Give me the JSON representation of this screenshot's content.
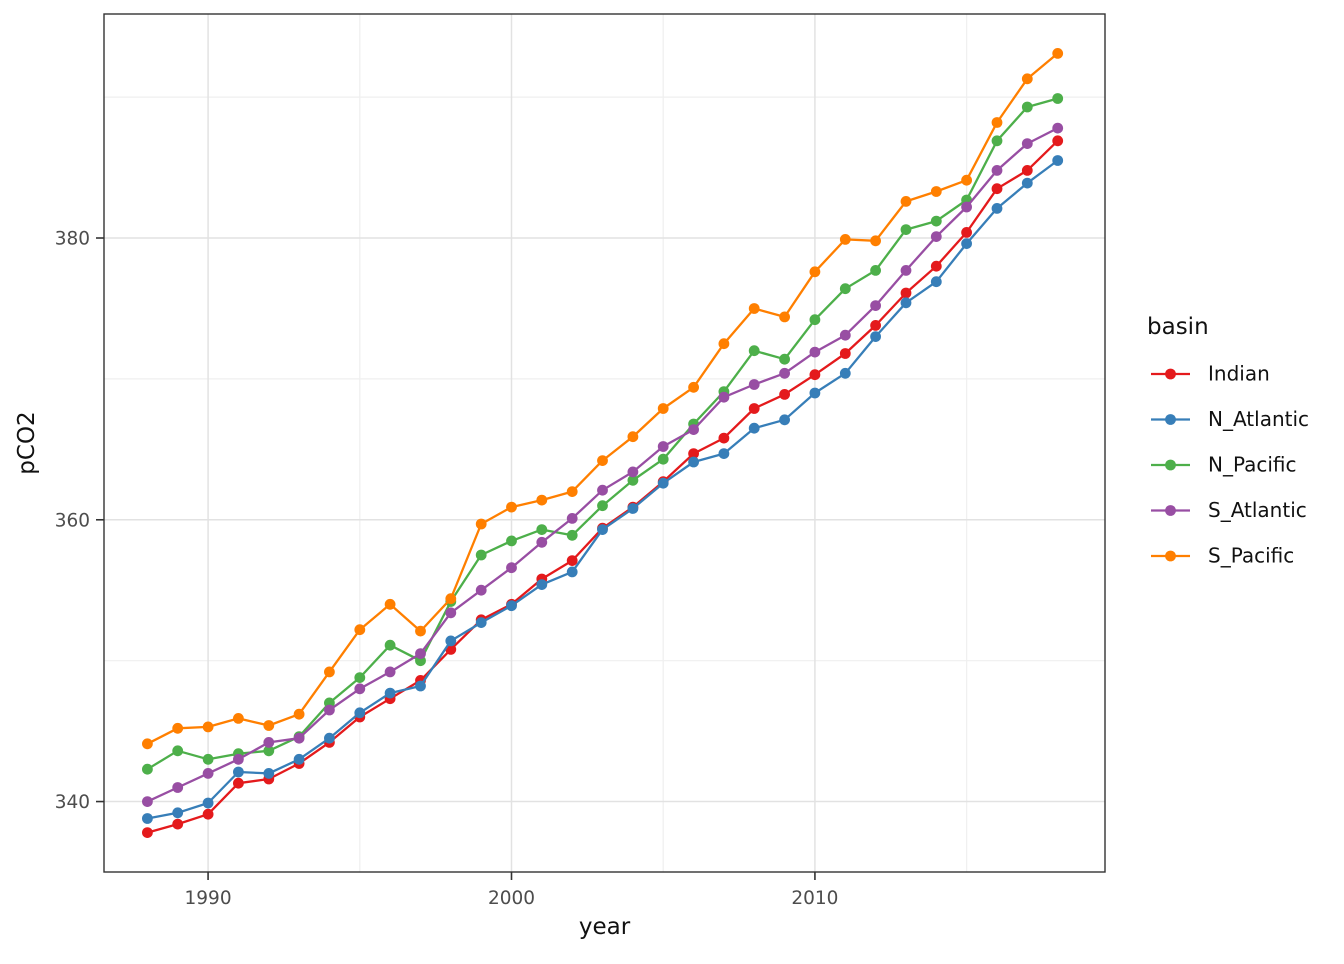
{
  "chart_data": {
    "type": "line",
    "title": "",
    "xlabel": "year",
    "ylabel": "pCO2",
    "marker": "circle",
    "grid": "major+minor",
    "x": [
      1988,
      1989,
      1990,
      1991,
      1992,
      1993,
      1994,
      1995,
      1996,
      1997,
      1998,
      1999,
      2000,
      2001,
      2002,
      2003,
      2004,
      2005,
      2006,
      2007,
      2008,
      2009,
      2010,
      2011,
      2012,
      2013,
      2014,
      2015,
      2016,
      2017,
      2018
    ],
    "series": [
      {
        "name": "Indian",
        "color": "#e41a1c",
        "values": [
          337.8,
          338.4,
          339.1,
          341.3,
          341.6,
          342.7,
          344.2,
          346.0,
          347.3,
          348.6,
          350.8,
          352.9,
          354.0,
          355.8,
          357.1,
          359.4,
          360.9,
          362.7,
          364.7,
          365.8,
          367.9,
          368.9,
          370.3,
          371.8,
          373.8,
          376.1,
          378.0,
          380.4,
          383.5,
          384.8,
          386.9
        ]
      },
      {
        "name": "N_Atlantic",
        "color": "#377eb8",
        "values": [
          338.8,
          339.2,
          339.9,
          342.1,
          342.0,
          343.0,
          344.5,
          346.3,
          347.7,
          348.2,
          351.4,
          352.7,
          353.9,
          355.4,
          356.3,
          359.3,
          360.8,
          362.6,
          364.1,
          364.7,
          366.5,
          367.1,
          369.0,
          370.4,
          373.0,
          375.4,
          376.9,
          379.6,
          382.1,
          383.9,
          385.5
        ]
      },
      {
        "name": "N_Pacific",
        "color": "#4daf4a",
        "values": [
          342.3,
          343.6,
          343.0,
          343.4,
          343.6,
          344.6,
          347.0,
          348.8,
          351.1,
          350.0,
          354.2,
          357.5,
          358.5,
          359.3,
          358.9,
          361.0,
          362.8,
          364.3,
          366.8,
          369.1,
          372.0,
          371.4,
          374.2,
          376.4,
          377.7,
          380.6,
          381.2,
          382.7,
          386.9,
          389.3,
          389.9
        ]
      },
      {
        "name": "S_Atlantic",
        "color": "#984ea3",
        "values": [
          340.0,
          341.0,
          342.0,
          343.0,
          344.2,
          344.5,
          346.5,
          348.0,
          349.2,
          350.5,
          353.4,
          355.0,
          356.6,
          358.4,
          360.1,
          362.1,
          363.4,
          365.2,
          366.4,
          368.7,
          369.6,
          370.4,
          371.9,
          373.1,
          375.2,
          377.7,
          380.1,
          382.2,
          384.8,
          386.7,
          387.8
        ]
      },
      {
        "name": "S_Pacific",
        "color": "#ff7f00",
        "values": [
          344.1,
          345.2,
          345.3,
          345.9,
          345.4,
          346.2,
          349.2,
          352.2,
          354.0,
          352.1,
          354.4,
          359.7,
          360.9,
          361.4,
          362.0,
          364.2,
          365.9,
          367.9,
          369.4,
          372.5,
          375.0,
          374.4,
          377.6,
          379.9,
          379.8,
          382.6,
          383.3,
          384.1,
          388.2,
          391.3,
          393.1
        ]
      }
    ],
    "x_ticks": {
      "major": [
        1990,
        2000,
        2010
      ],
      "minor": [
        1995,
        2005,
        2015
      ],
      "labels": [
        "1990",
        "2000",
        "2010"
      ]
    },
    "y_ticks": {
      "major": [
        340,
        360,
        380
      ],
      "minor": [
        350,
        370,
        390
      ],
      "labels": [
        "340",
        "360",
        "380"
      ]
    },
    "xlim": [
      1986.57,
      2019.56
    ],
    "ylim": [
      335.0,
      395.9
    ],
    "legend": {
      "title": "basin",
      "position": "right",
      "entries": [
        "Indian",
        "N_Atlantic",
        "N_Pacific",
        "S_Atlantic",
        "S_Pacific"
      ]
    }
  },
  "style_colors": {
    "panel_border": "#333333",
    "tick_mark": "#333333",
    "tick_label": "#4d4d4d",
    "axis_title": "#111111",
    "grid_major": "#e2e2e2",
    "grid_minor": "#efefef",
    "background": "#ffffff"
  }
}
